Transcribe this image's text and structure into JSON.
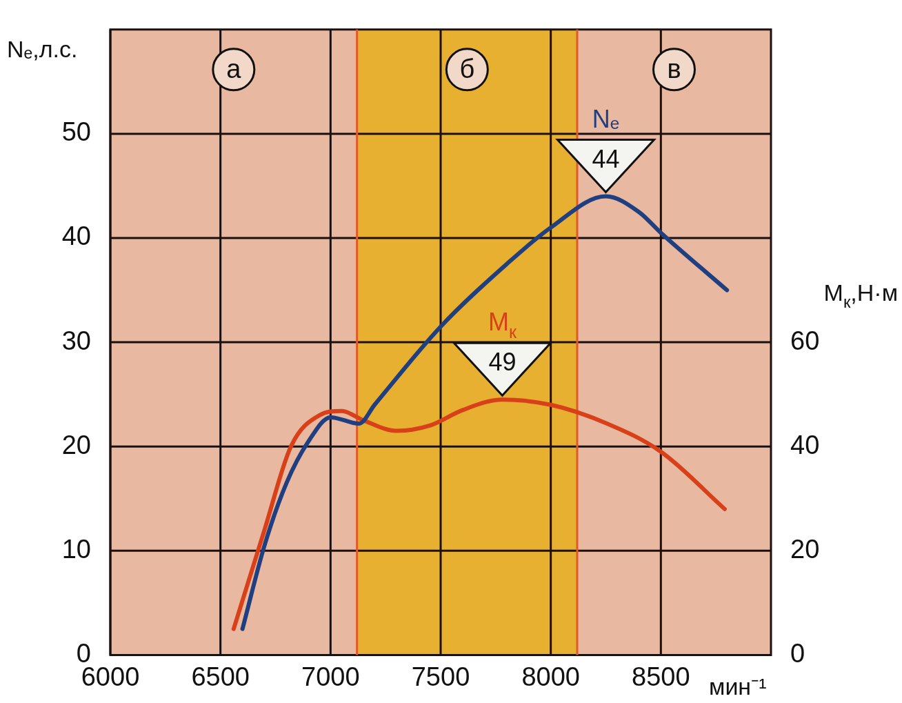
{
  "chart_data": {
    "type": "line",
    "xlabel": "мин⁻¹",
    "ylabel": "Nₑ,л.с.",
    "y2label": "M$_{к}$,Н·м",
    "xlim": [
      6000,
      9000
    ],
    "xticks": [
      6000,
      6500,
      7000,
      7500,
      8000,
      8500
    ],
    "ylim": [
      0,
      60
    ],
    "yticks": [
      0,
      10,
      20,
      30,
      40,
      50
    ],
    "y2lim": [
      0,
      120
    ],
    "y2ticks": [
      0,
      20,
      40,
      60
    ],
    "grid": true,
    "legend": false,
    "marker": "none",
    "line_style": "solid",
    "series": [
      {
        "name": "Nₑ",
        "value_labels": [
          null,
          null,
          null,
          null,
          null,
          null,
          null,
          null,
          null,
          null,
          "44",
          null,
          null,
          null
        ],
        "color": "#1f3f80",
        "axis": "y",
        "x": [
          6600,
          6700,
          6800,
          6900,
          7000,
          7130,
          7200,
          7500,
          7800,
          8000,
          8250,
          8400,
          8500,
          8800
        ],
        "values": [
          2.5,
          10.5,
          16.5,
          20.5,
          22.8,
          22.2,
          24,
          31.5,
          37.5,
          41,
          44,
          42.5,
          40.5,
          35
        ]
      },
      {
        "name": "M$_{к}$",
        "value_labels": [
          null,
          null,
          null,
          null,
          null,
          null,
          null,
          null,
          null,
          "49",
          null,
          null,
          null,
          null
        ],
        "color": "#d8401a",
        "axis": "y2",
        "x": [
          6560,
          6700,
          6820,
          6950,
          7050,
          7150,
          7300,
          7450,
          7600,
          7780,
          8000,
          8250,
          8500,
          8790
        ],
        "values": [
          5,
          24,
          40,
          46,
          46.8,
          45,
          43,
          44,
          47,
          49,
          48,
          44.5,
          39,
          28
        ]
      }
    ],
    "bands": [
      {
        "axis": "x",
        "from": 7120,
        "to": 8120,
        "color": "#e8b030",
        "label": "б"
      }
    ],
    "ref_lines": [
      {
        "axis": "x",
        "value": 7120,
        "color": "#e05a28"
      },
      {
        "axis": "x",
        "value": 8120,
        "color": "#e05a28"
      }
    ],
    "annotations": [
      "а",
      "в"
    ]
  }
}
